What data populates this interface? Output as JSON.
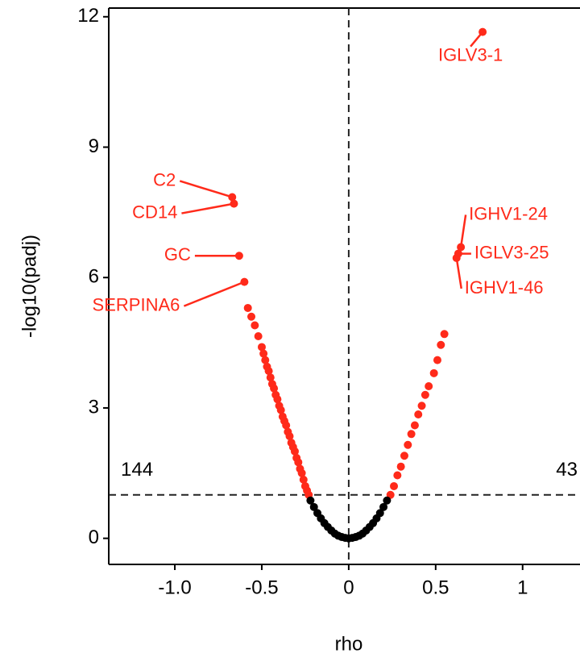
{
  "chart_data": {
    "type": "scatter",
    "xlabel": "rho",
    "ylabel": "-log10(padj)",
    "xlim": [
      -1.38,
      1.33
    ],
    "ylim": [
      -0.6,
      12.2
    ],
    "xticks": [
      {
        "value": -1,
        "label": "-1.0"
      },
      -0.5,
      0,
      0.5,
      {
        "value": 1,
        "label": "1"
      }
    ],
    "yticks": [
      0,
      3,
      6,
      9,
      12
    ],
    "hline": 1,
    "vline": 0,
    "annotations": [
      "144",
      "43"
    ],
    "series": [
      {
        "color": "#ff2a1a",
        "x": [
          -0.23,
          -0.24,
          -0.25,
          -0.26,
          -0.27,
          -0.28,
          -0.29,
          -0.3,
          -0.31,
          -0.32,
          -0.33,
          -0.34,
          -0.35,
          -0.36,
          -0.37,
          -0.38,
          -0.39,
          -0.4,
          -0.41,
          -0.42,
          -0.43,
          -0.44,
          -0.45,
          -0.46,
          -0.47,
          -0.48,
          -0.49,
          -0.5,
          -0.52,
          -0.54,
          -0.56,
          -0.58,
          0.24,
          0.26,
          0.28,
          0.3,
          0.32,
          0.34,
          0.36,
          0.38,
          0.4,
          0.42,
          0.44,
          0.46,
          0.49,
          0.51,
          0.53,
          0.55
        ],
        "values": [
          1.0,
          1.1,
          1.2,
          1.35,
          1.5,
          1.6,
          1.75,
          1.85,
          2.0,
          2.1,
          2.2,
          2.35,
          2.45,
          2.6,
          2.7,
          2.8,
          2.95,
          3.05,
          3.2,
          3.3,
          3.45,
          3.55,
          3.7,
          3.85,
          3.95,
          4.1,
          4.25,
          4.4,
          4.65,
          4.9,
          5.1,
          5.3,
          1.0,
          1.2,
          1.45,
          1.65,
          1.9,
          2.15,
          2.4,
          2.6,
          2.85,
          3.05,
          3.3,
          3.5,
          3.8,
          4.1,
          4.45,
          4.7
        ]
      },
      {
        "color": "#000000",
        "x": [
          -0.22,
          -0.2,
          -0.18,
          -0.16,
          -0.14,
          -0.12,
          -0.1,
          -0.08,
          -0.06,
          -0.04,
          -0.02,
          0,
          0.02,
          0.04,
          0.06,
          0.08,
          0.1,
          0.12,
          0.14,
          0.16,
          0.18,
          0.2,
          0.22
        ],
        "values": [
          0.87,
          0.72,
          0.58,
          0.46,
          0.35,
          0.26,
          0.18,
          0.11,
          0.06,
          0.03,
          0.01,
          0,
          0.01,
          0.03,
          0.06,
          0.11,
          0.18,
          0.26,
          0.35,
          0.46,
          0.58,
          0.72,
          0.87
        ]
      },
      {
        "color": "#ff2a1a",
        "x": [
          0.77,
          -0.67,
          -0.66,
          -0.63,
          -0.6,
          0.645,
          0.63,
          0.62
        ],
        "values": [
          11.65,
          7.85,
          7.7,
          6.5,
          5.9,
          6.7,
          6.55,
          6.45
        ],
        "labels": [
          "IGLV3-1",
          "C2",
          "CD14",
          "GC",
          "SERPINA6",
          "IGHV1-24",
          "IGLV3-25",
          "IGHV1-46"
        ]
      }
    ]
  }
}
